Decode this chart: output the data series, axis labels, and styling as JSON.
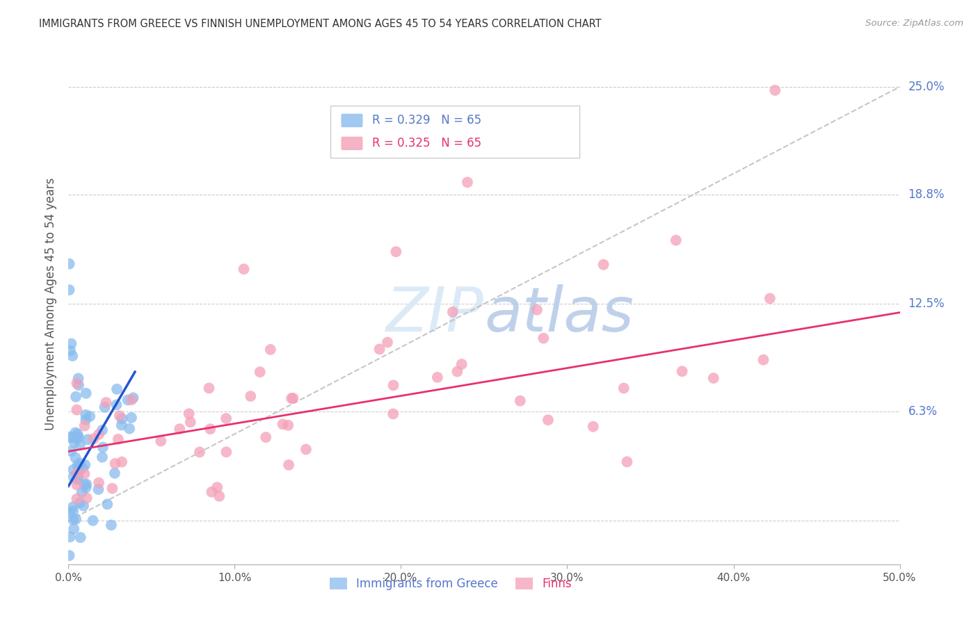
{
  "title": "IMMIGRANTS FROM GREECE VS FINNISH UNEMPLOYMENT AMONG AGES 45 TO 54 YEARS CORRELATION CHART",
  "source": "Source: ZipAtlas.com",
  "ylabel": "Unemployment Among Ages 45 to 54 years",
  "xlim": [
    0.0,
    0.5
  ],
  "ylim": [
    -0.025,
    0.275
  ],
  "blue_R": "0.329",
  "blue_N": "65",
  "pink_R": "0.325",
  "pink_N": "65",
  "blue_color": "#88bbee",
  "pink_color": "#f4a0b8",
  "blue_line_color": "#2255cc",
  "pink_line_color": "#e83070",
  "dashed_line_color": "#b8b8b8",
  "legend_label_blue": "Immigrants from Greece",
  "legend_label_pink": "Finns",
  "watermark_zip_color": "#d8e8f5",
  "watermark_atlas_color": "#b8cce8",
  "background_color": "#ffffff",
  "grid_color": "#cccccc",
  "title_color": "#333333",
  "axis_label_color": "#555555",
  "tick_right_color": "#5577cc",
  "tick_bottom_color": "#555555",
  "ytick_vals": [
    0.0,
    0.063,
    0.125,
    0.188,
    0.25
  ],
  "ytick_vals_right_show": [
    0.063,
    0.125,
    0.188,
    0.25
  ],
  "ytick_labels_right": [
    "6.3%",
    "12.5%",
    "18.8%",
    "25.0%"
  ],
  "xtick_vals": [
    0.0,
    0.1,
    0.2,
    0.3,
    0.4,
    0.5
  ],
  "xtick_labels": [
    "0.0%",
    "10.0%",
    "20.0%",
    "30.0%",
    "40.0%",
    "50.0%"
  ]
}
